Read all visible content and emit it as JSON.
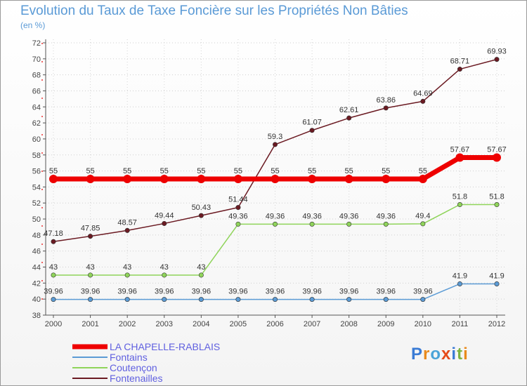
{
  "title": "Evolution du Taux de Taxe Foncière sur les Propriétés Non Bâties",
  "unit": "(en %)",
  "logo": "Proxiti",
  "chart_data": {
    "type": "line",
    "title": "Evolution du Taux de Taxe Foncière sur les Propriétés Non Bâties",
    "ylabel": "(en %)",
    "xlabel": "",
    "ylim": [
      38,
      72
    ],
    "y_ticks": [
      38,
      40,
      42,
      44,
      46,
      48,
      50,
      52,
      54,
      56,
      58,
      60,
      62,
      64,
      66,
      68,
      70,
      72
    ],
    "categories": [
      "2000",
      "2001",
      "2002",
      "2003",
      "2004",
      "2005",
      "2006",
      "2007",
      "2008",
      "2009",
      "2010",
      "2011",
      "2012"
    ],
    "series": [
      {
        "name": "Fontenailles",
        "color": "#6b1a22",
        "values": [
          47.18,
          47.85,
          48.57,
          49.44,
          50.43,
          51.44,
          59.3,
          61.07,
          62.61,
          63.86,
          64.69,
          68.71,
          69.93
        ],
        "labels": [
          "47.18",
          "47.85",
          "48.57",
          "49.44",
          "50.43",
          "51.44",
          "59.3",
          "61.07",
          "62.61",
          "63.86",
          "64.69",
          "68.71",
          "69.93"
        ]
      },
      {
        "name": "Coutençon",
        "color": "#8fd45a",
        "values": [
          43,
          43,
          43,
          43,
          43,
          49.36,
          49.36,
          49.36,
          49.36,
          49.36,
          49.4,
          51.8,
          51.8
        ],
        "labels": [
          "43",
          "43",
          "43",
          "43",
          "43",
          "49.36",
          "49.36",
          "49.36",
          "49.36",
          "49.36",
          "49.4",
          "51.8",
          "51.8"
        ]
      },
      {
        "name": "Fontains",
        "color": "#5b9bd5",
        "values": [
          39.96,
          39.96,
          39.96,
          39.96,
          39.96,
          39.96,
          39.96,
          39.96,
          39.96,
          39.96,
          39.96,
          41.9,
          41.9
        ],
        "labels": [
          "39.96",
          "39.96",
          "39.96",
          "39.96",
          "39.96",
          "39.96",
          "39.96",
          "39.96",
          "39.96",
          "39.96",
          "39.96",
          "41.9",
          "41.9"
        ]
      },
      {
        "name": "LA CHAPELLE-RABLAIS",
        "color": "#ee0000",
        "values": [
          55,
          55,
          55,
          55,
          55,
          55,
          55,
          55,
          55,
          55,
          55,
          57.67,
          57.67
        ],
        "labels": [
          "55",
          "55",
          "55",
          "55",
          "55",
          "55",
          "55",
          "55",
          "55",
          "55",
          "55",
          "57.67",
          "57.67"
        ]
      }
    ],
    "legend": [
      {
        "name": "LA CHAPELLE-RABLAIS",
        "color": "#ee0000",
        "text_color": "#6060e0"
      },
      {
        "name": "Fontains",
        "color": "#5b9bd5",
        "text_color": "#6060e0"
      },
      {
        "name": "Coutençon",
        "color": "#8fd45a",
        "text_color": "#6060e0"
      },
      {
        "name": "Fontenailles",
        "color": "#6b1a22",
        "text_color": "#6060e0"
      }
    ]
  }
}
